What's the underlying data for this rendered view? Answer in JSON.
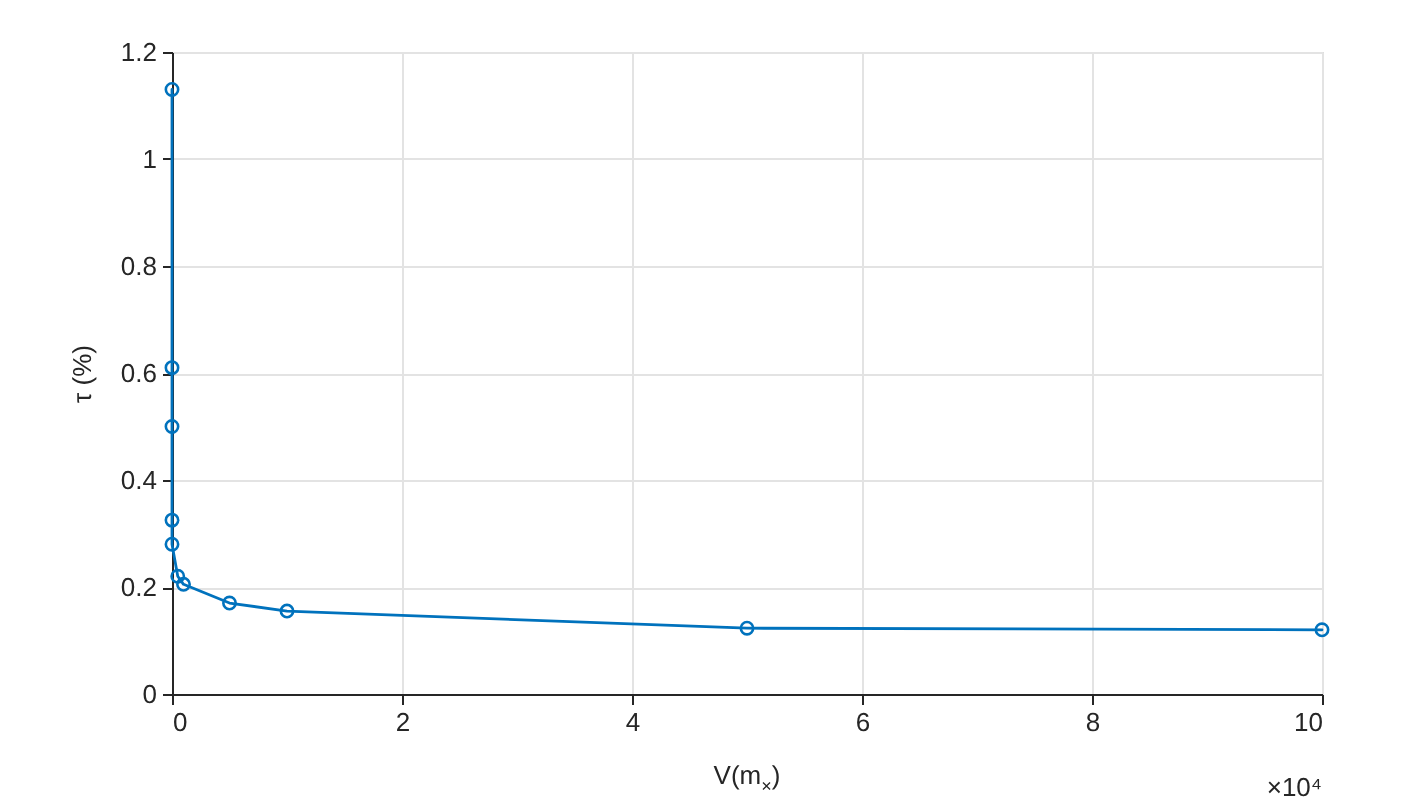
{
  "chart_data": {
    "type": "line",
    "xlabel": "V(m$_{×}$)",
    "ylabel": "τ (%)",
    "annotations": [
      "×10⁴"
    ],
    "x": [
      0,
      0,
      0,
      0,
      0,
      0.05,
      0.1,
      0.5,
      1,
      5,
      10
    ],
    "values": [
      1.13,
      0.61,
      0.5,
      0.325,
      0.28,
      0.22,
      0.205,
      0.17,
      0.155,
      0.123,
      0.12
    ],
    "color": "#0072bd",
    "marker": "circle",
    "line_style": "solid",
    "grid": true,
    "xlim": [
      0,
      10
    ],
    "xticks": [
      0,
      2,
      4,
      6,
      8,
      10
    ],
    "ylim": [
      0,
      1.2
    ],
    "yticks": [
      0,
      0.2,
      0.4,
      0.6,
      0.8,
      1,
      1.2
    ]
  }
}
